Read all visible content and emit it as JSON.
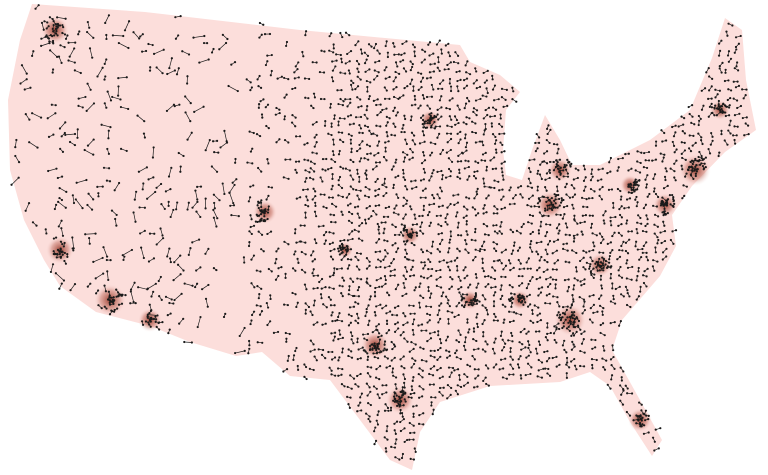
{
  "map": {
    "background_color": "#ffffff",
    "land_color": "#fcdedb",
    "node_color": "#1a1a1a",
    "cluster_color": "#8b2a1a"
  }
}
